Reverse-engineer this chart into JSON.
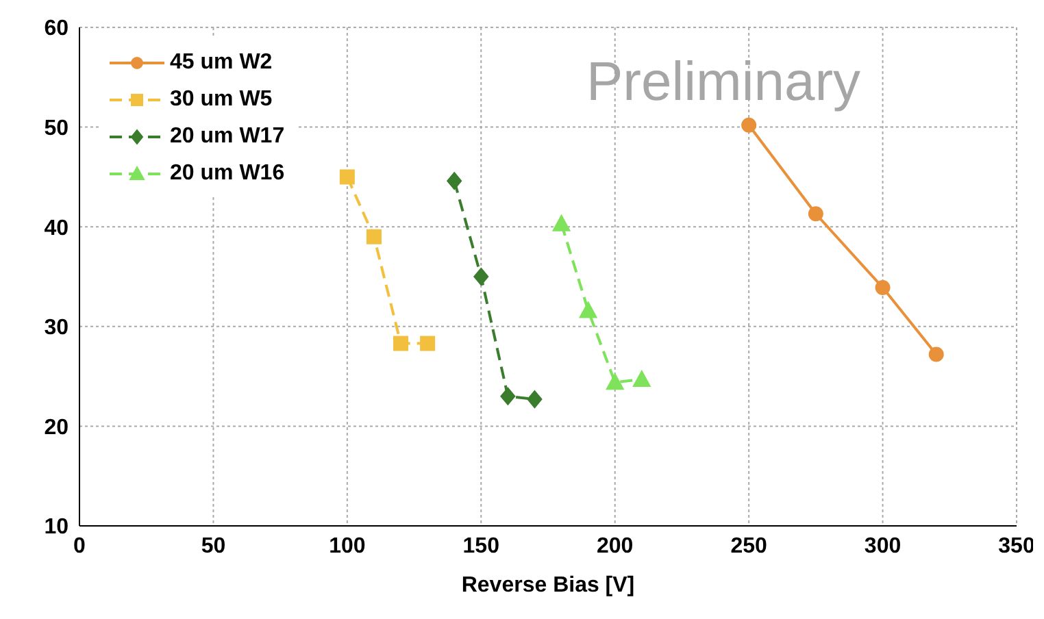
{
  "chart_data": {
    "type": "line",
    "xlabel": "Reverse Bias [V]",
    "xlim": [
      0,
      350
    ],
    "xticks": [
      0,
      50,
      100,
      150,
      200,
      250,
      300,
      350
    ],
    "ylim": [
      10,
      60
    ],
    "yticks": [
      10,
      20,
      30,
      40,
      50,
      60
    ],
    "grid": true,
    "legend": "top left",
    "annotations": [
      "Preliminary"
    ],
    "series": [
      {
        "name": "45 um W2",
        "color": "#e8913a",
        "marker": "circle",
        "line_style": "solid",
        "x": [
          250,
          275,
          300,
          320
        ],
        "values": [
          50.2,
          41.3,
          33.9,
          27.2
        ]
      },
      {
        "name": "30 um W5",
        "color": "#f2c03e",
        "marker": "square",
        "line_style": "dashed",
        "x": [
          100,
          110,
          120,
          130
        ],
        "values": [
          45,
          39,
          28.3,
          28.3
        ]
      },
      {
        "name": "20 um W17",
        "color": "#3a7d2c",
        "marker": "diamond",
        "line_style": "dashed",
        "x": [
          140,
          150,
          160,
          170
        ],
        "values": [
          44.6,
          35,
          23,
          22.7
        ]
      },
      {
        "name": "20 um W16",
        "color": "#7ee35a",
        "marker": "triangle",
        "line_style": "dashed",
        "x": [
          180,
          190,
          200,
          210
        ],
        "values": [
          40.3,
          31.6,
          24.4,
          24.7
        ]
      }
    ]
  }
}
